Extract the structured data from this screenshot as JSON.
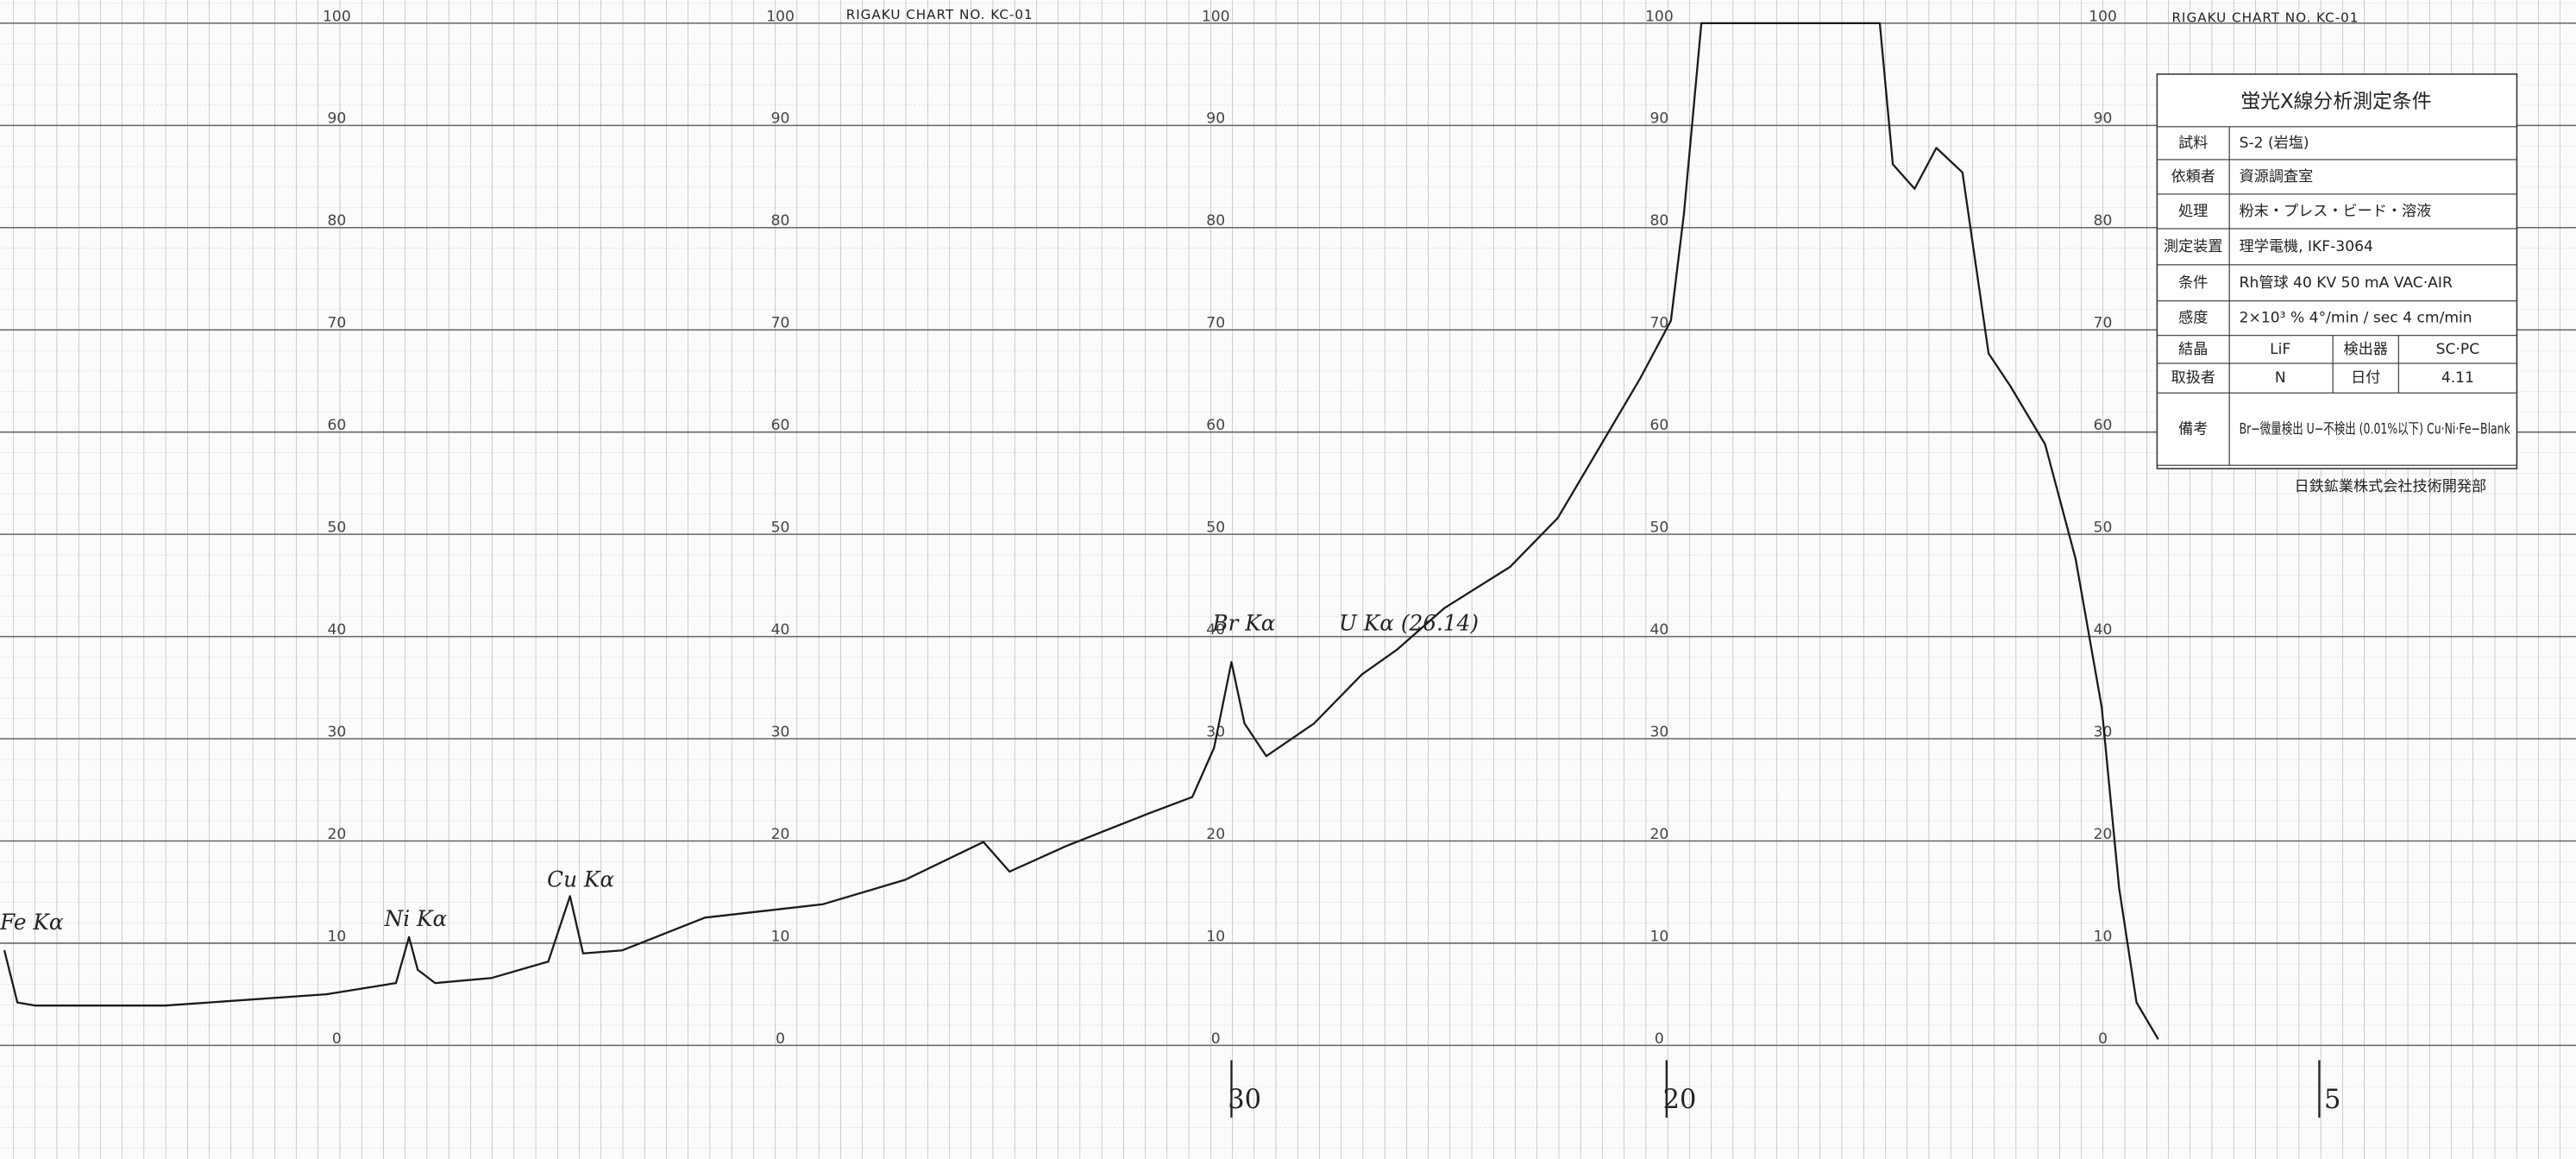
{
  "chart_data": {
    "type": "line",
    "color": "#1a1a1a",
    "x": [
      58.2,
      57.9,
      57.5,
      54.5,
      50.8,
      49.2,
      48.9,
      48.7,
      48.3,
      47.0,
      45.7,
      45.2,
      44.9,
      44.0,
      42.1,
      39.4,
      37.5,
      35.7,
      35.1,
      33.8,
      31.9,
      30.9,
      30.4,
      30.0,
      29.7,
      29.2,
      28.1,
      27.0,
      26.2,
      25.1,
      23.6,
      22.5,
      21.5,
      20.6,
      19.9,
      19.6,
      19.2,
      15.1,
      14.8,
      14.3,
      13.8,
      13.2,
      12.6,
      12.1,
      11.3,
      10.6,
      10.0,
      9.6,
      9.2,
      8.7
    ],
    "values": [
      9.3,
      4.2,
      3.9,
      3.9,
      5.0,
      6.1,
      10.6,
      7.4,
      6.1,
      6.6,
      8.2,
      14.6,
      9.0,
      9.3,
      12.5,
      13.8,
      16.2,
      19.9,
      17.0,
      19.5,
      22.7,
      24.3,
      29.1,
      37.5,
      31.5,
      28.3,
      31.5,
      36.3,
      38.7,
      42.8,
      46.8,
      51.6,
      58.8,
      65.3,
      70.9,
      81.4,
      100,
      100,
      86.2,
      83.8,
      87.8,
      85.4,
      67.7,
      64.5,
      58.8,
      47.6,
      33.1,
      15.4,
      4.2,
      0.6
    ],
    "xlim": [
      58.3,
      -0.9
    ],
    "xticks": [
      30,
      20,
      5
    ],
    "ylim": [
      0,
      100
    ],
    "yticks": [
      0,
      10,
      20,
      30,
      40,
      50,
      60,
      70,
      80,
      90,
      100
    ],
    "grid": true,
    "annotations": [
      "Fe Kα",
      "Ni Kα",
      "Cu Kα",
      "Br Kα",
      "U Kα (26.14)"
    ]
  },
  "header": {
    "chart_label": "RIGAKU CHART NO. KC-01"
  },
  "table": {
    "title": "蛍光X線分析測定条件",
    "rows": [
      [
        "試料",
        "S-2 (岩塩)"
      ],
      [
        "依頼者",
        "資源調査室"
      ],
      [
        "処理",
        "粉末・プレス・ビード・溶液"
      ],
      [
        "測定装置",
        "理学電機, IKF-3064"
      ],
      [
        "条件",
        "Rh管球 40 KV 50 mA VAC·AIR"
      ],
      [
        "感度",
        "2×10³ % 4°/min / sec 4 cm/min"
      ],
      [
        "結晶",
        "LiF",
        "検出器",
        "SC·PC"
      ],
      [
        "取扱者",
        "N",
        "日付",
        "4.11"
      ],
      [
        "備考",
        "Br−微量検出 U−不検出 (0.01%以下) Cu·Ni·Fe−Blank"
      ]
    ],
    "footer": "日鉄鉱業株式会社技術開発部"
  }
}
